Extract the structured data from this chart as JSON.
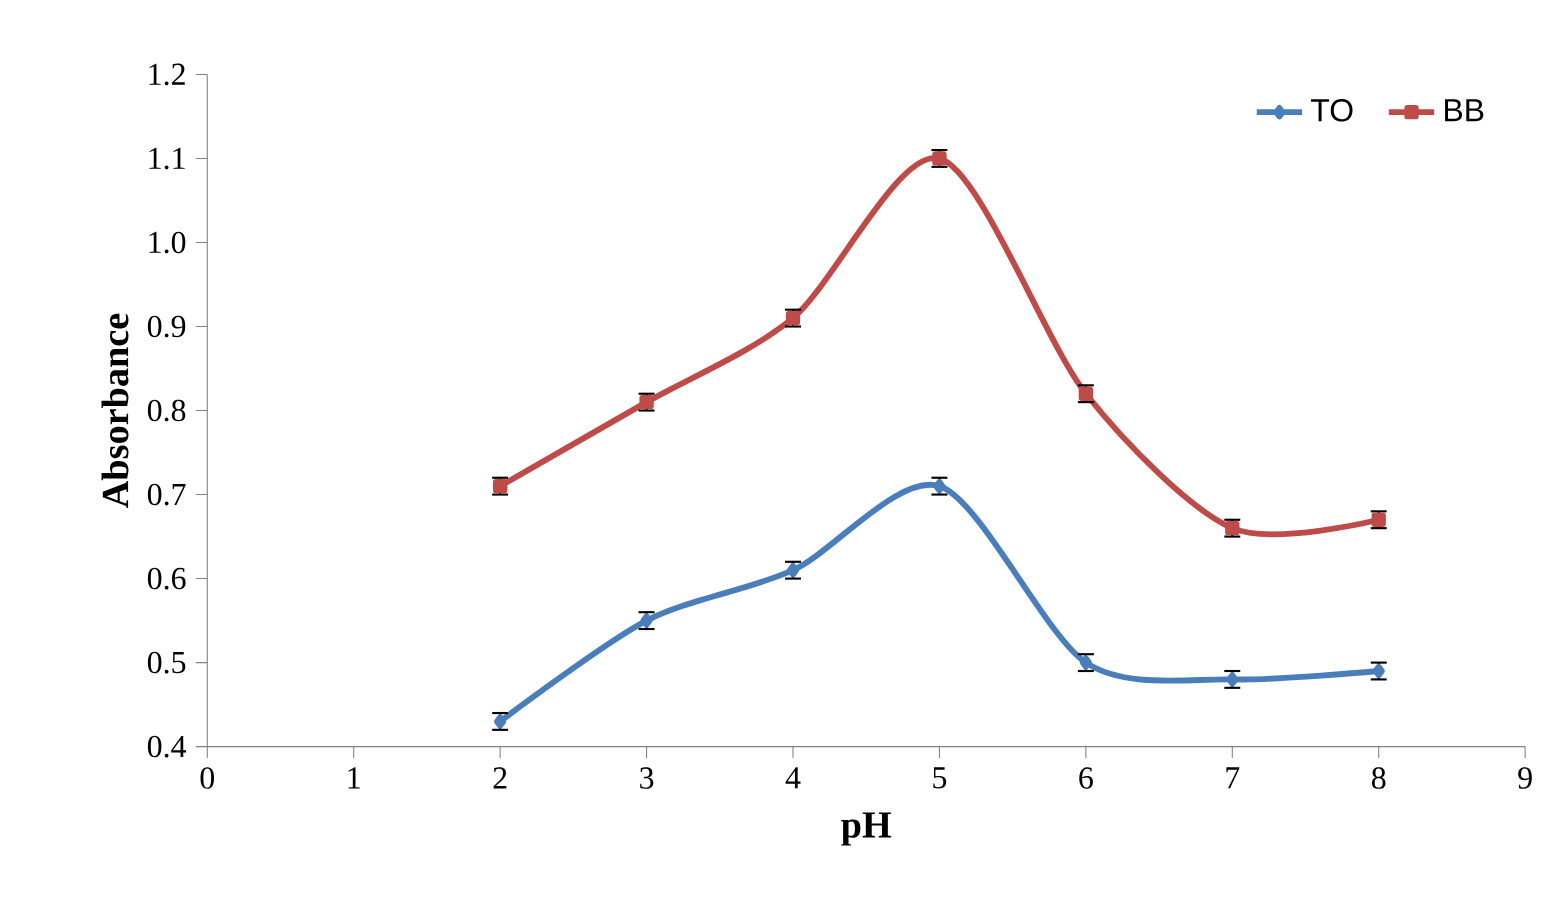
{
  "chart_data": {
    "type": "line",
    "xlabel": "pH",
    "ylabel": "Absorbance",
    "x": [
      2,
      3,
      4,
      5,
      6,
      7,
      8
    ],
    "series": [
      {
        "name": "TO",
        "color": "#4a7ebb",
        "marker": "diamond",
        "values": [
          0.43,
          0.55,
          0.61,
          0.71,
          0.5,
          0.48,
          0.49
        ],
        "errors": [
          0.01,
          0.01,
          0.01,
          0.01,
          0.01,
          0.01,
          0.01
        ]
      },
      {
        "name": "BB",
        "color": "#be4b48",
        "marker": "square",
        "values": [
          0.71,
          0.81,
          0.91,
          1.1,
          0.82,
          0.66,
          0.67
        ],
        "errors": [
          0.01,
          0.01,
          0.01,
          0.01,
          0.01,
          0.01,
          0.01
        ]
      }
    ],
    "xlim": [
      0,
      9
    ],
    "xticks": [
      0,
      1,
      2,
      3,
      4,
      5,
      6,
      7,
      8,
      9
    ],
    "ylim": [
      0.4,
      1.2
    ],
    "yticks": [
      0.4,
      0.5,
      0.6,
      0.7,
      0.8,
      0.9,
      {
        "value": 1.0,
        "label": "1.0"
      },
      1.1,
      1.2
    ],
    "legend": "top right",
    "grid": false,
    "line_style": "solid"
  }
}
